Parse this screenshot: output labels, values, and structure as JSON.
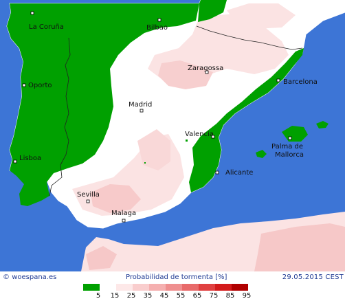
{
  "header_credit": "woespana.es",
  "map_title": "Probabilidad de tormenta [%]",
  "date": "29.05.2015 CEST",
  "colors": {
    "sea": "#3d75d6",
    "land_low": "#00a000",
    "land_zero": "#ffffff",
    "prob_light": "#fbe6e6",
    "prob_mid": "#f5c6c6",
    "prob_high": "#f0aeae"
  },
  "legend": {
    "labels": [
      "5",
      "15",
      "25",
      "35",
      "45",
      "55",
      "65",
      "75",
      "85",
      "95"
    ],
    "colors": [
      "#00a000",
      "#ffffff",
      "#fde8e8",
      "#f9cdcd",
      "#f5b0b0",
      "#ef8f8f",
      "#e86a6a",
      "#e04040",
      "#d31b1b",
      "#b00000"
    ]
  },
  "cities": [
    {
      "name": "La Coruña"
    },
    {
      "name": "Bilbao"
    },
    {
      "name": "Zaragossa"
    },
    {
      "name": "Barcelona"
    },
    {
      "name": "Oporto"
    },
    {
      "name": "Madrid"
    },
    {
      "name": "Valencia"
    },
    {
      "name": "Palma de"
    },
    {
      "name": "Mallorca"
    },
    {
      "name": "Lisboa"
    },
    {
      "name": "Alicante"
    },
    {
      "name": "Sevilla"
    },
    {
      "name": "Malaga"
    }
  ]
}
